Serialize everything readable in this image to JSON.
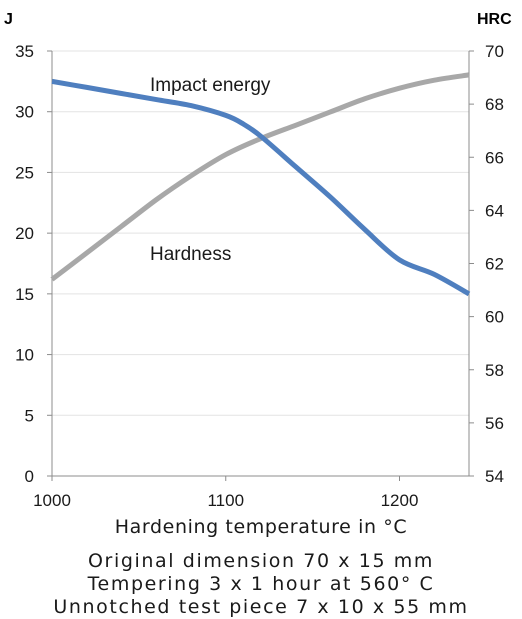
{
  "chart_data": {
    "type": "line",
    "xlabel": "Hardening temperature in °C",
    "y_left_unit": "J",
    "y_right_unit": "HRC",
    "x_range": [
      1000,
      1240
    ],
    "x_ticks": [
      1000,
      1100,
      1200
    ],
    "y_left_range": [
      0,
      35
    ],
    "y_left_ticks": [
      0,
      5,
      10,
      15,
      20,
      25,
      30,
      35
    ],
    "y_right_range": [
      54,
      70
    ],
    "y_right_ticks": [
      54,
      56,
      58,
      60,
      62,
      64,
      66,
      68,
      70
    ],
    "grid": "horizontal",
    "series": [
      {
        "name": "Impact energy",
        "axis": "left",
        "color": "#4f7fbf",
        "x": [
          1000,
          1020,
          1040,
          1060,
          1080,
          1100,
          1110,
          1120,
          1140,
          1160,
          1180,
          1200,
          1220,
          1240
        ],
        "y": [
          32.5,
          32.0,
          31.5,
          31.0,
          30.5,
          29.7,
          29.0,
          28.0,
          25.5,
          23.0,
          20.3,
          17.8,
          16.6,
          15.0
        ]
      },
      {
        "name": "Hardness",
        "axis": "right",
        "color": "#a8a8a8",
        "x": [
          1000,
          1020,
          1040,
          1060,
          1080,
          1100,
          1120,
          1140,
          1160,
          1180,
          1200,
          1220,
          1240
        ],
        "y": [
          61.4,
          62.4,
          63.4,
          64.4,
          65.3,
          66.1,
          66.7,
          67.2,
          67.7,
          68.2,
          68.6,
          68.9,
          69.1
        ]
      }
    ]
  },
  "captions": [
    "Original dimension 70 x 15 mm",
    "Tempering 3 x 1 hour at 560° C",
    "Unnotched test piece 7 x 10 x 55 mm"
  ]
}
